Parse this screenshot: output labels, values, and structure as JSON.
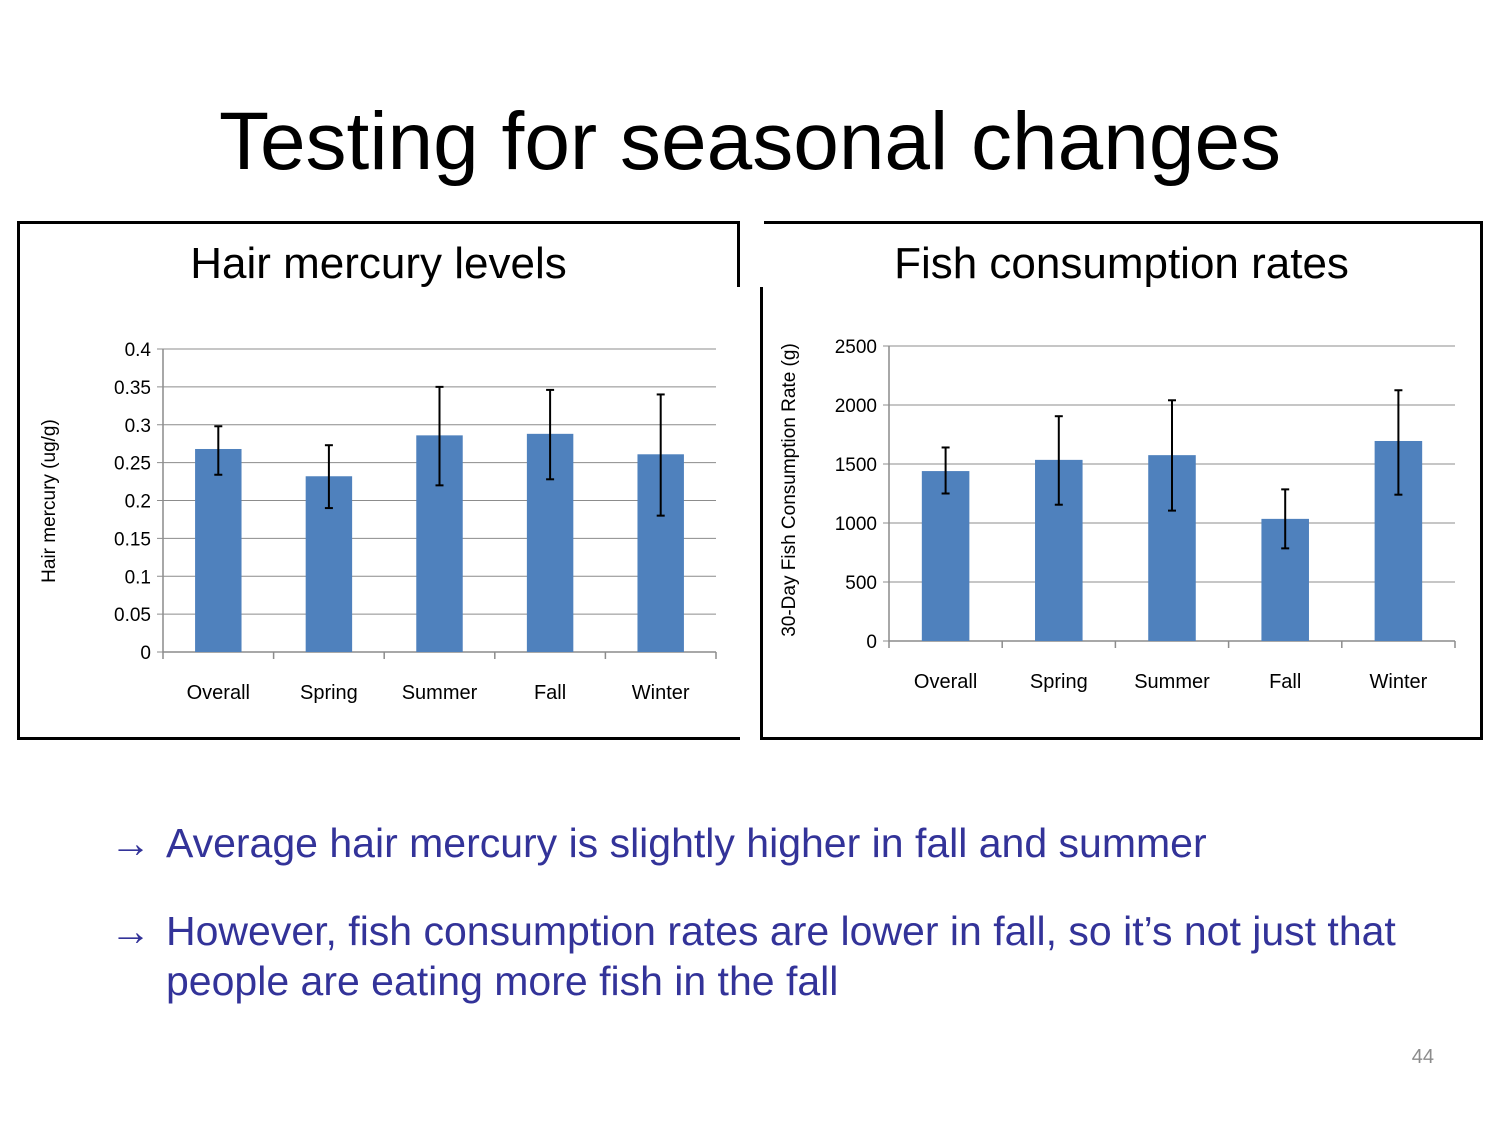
{
  "slide": {
    "title": "Testing for seasonal changes",
    "page_number": "44"
  },
  "bullets": [
    {
      "arrow": "→",
      "text": "Average hair mercury is slightly higher in fall and summer"
    },
    {
      "arrow": "→",
      "text": "However, fish consumption rates are lower in fall, so it’s not just that people are eating more fish in the fall"
    }
  ],
  "colors": {
    "bar": "#4F81BD",
    "grid": "#8c8c8c",
    "bullet_text": "#333399"
  },
  "chart_data": [
    {
      "type": "bar",
      "title": "Hair mercury levels",
      "categories": [
        "Overall",
        "Spring",
        "Summer",
        "Fall",
        "Winter"
      ],
      "values": [
        0.268,
        0.232,
        0.286,
        0.288,
        0.261
      ],
      "error_low": [
        0.234,
        0.19,
        0.22,
        0.228,
        0.18
      ],
      "error_high": [
        0.298,
        0.273,
        0.35,
        0.346,
        0.34
      ],
      "ylabel": "Hair mercury (ug/g)",
      "ylim": [
        0,
        0.4
      ],
      "yticks": [
        "0",
        "0.05",
        "0.1",
        "0.15",
        "0.2",
        "0.25",
        "0.3",
        "0.35",
        "0.4"
      ],
      "grid": true,
      "legend": "none"
    },
    {
      "type": "bar",
      "title": "Fish consumption rates",
      "categories": [
        "Overall",
        "Spring",
        "Summer",
        "Fall",
        "Winter"
      ],
      "values": [
        1440,
        1535,
        1575,
        1035,
        1695
      ],
      "error_low": [
        1250,
        1155,
        1105,
        785,
        1240
      ],
      "error_high": [
        1640,
        1905,
        2040,
        1285,
        2125
      ],
      "ylabel": "30-Day Fish Consumption Rate (g)",
      "ylim": [
        0,
        2500
      ],
      "yticks": [
        "0",
        "500",
        "1000",
        "1500",
        "2000",
        "2500"
      ],
      "grid": true,
      "legend": "none"
    }
  ]
}
